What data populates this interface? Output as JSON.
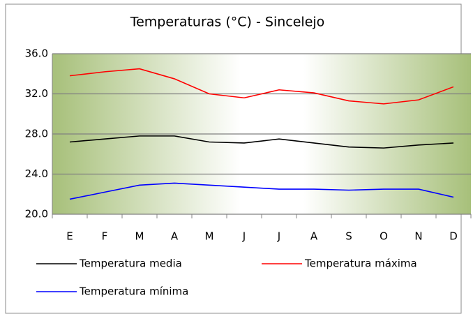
{
  "chart_data": {
    "type": "line",
    "title": "Temperaturas (°C) - Sincelejo",
    "categories": [
      "E",
      "F",
      "M",
      "A",
      "M",
      "J",
      "J",
      "A",
      "S",
      "O",
      "N",
      "D"
    ],
    "series": [
      {
        "name": "Temperatura media",
        "color": "#000000",
        "values": [
          27.2,
          27.5,
          27.8,
          27.8,
          27.2,
          27.1,
          27.5,
          27.1,
          26.7,
          26.6,
          26.9,
          27.1
        ]
      },
      {
        "name": "Temperatura máxima",
        "color": "#ff0000",
        "values": [
          33.8,
          34.2,
          34.5,
          33.5,
          32.0,
          31.6,
          32.4,
          32.1,
          31.3,
          31.0,
          31.4,
          32.7
        ]
      },
      {
        "name": "Temperatura mínima",
        "color": "#0000ff",
        "values": [
          21.5,
          22.2,
          22.9,
          23.1,
          22.9,
          22.7,
          22.5,
          22.5,
          22.4,
          22.5,
          22.5,
          21.7
        ]
      }
    ],
    "ylim": [
      20,
      36
    ],
    "yticks": [
      {
        "value": 20,
        "label": "20.0"
      },
      {
        "value": 24,
        "label": "24.0"
      },
      {
        "value": 28,
        "label": "28.0"
      },
      {
        "value": 32,
        "label": "32.0"
      },
      {
        "value": 36,
        "label": "36.0"
      }
    ],
    "grid": true
  }
}
